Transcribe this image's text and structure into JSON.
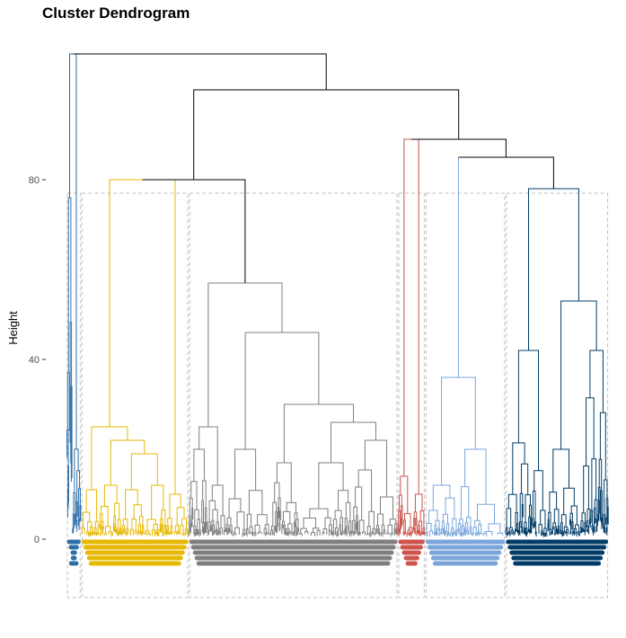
{
  "chart_data": {
    "type": "dendrogram",
    "title": "Cluster Dendrogram",
    "xlabel": "",
    "ylabel": "Height",
    "ylim": [
      -13,
      108
    ],
    "y_ticks": [
      0,
      40,
      80
    ],
    "grid": false,
    "legend": "none",
    "leaf_count_approx": 1300,
    "clusters": [
      {
        "id": "k1",
        "color": "#2E6FA8",
        "rect": {
          "x0": 0,
          "x1": 36,
          "y0": -13,
          "y1": 77
        },
        "merge_height": 108
      },
      {
        "id": "k2",
        "color": "#E7B800",
        "rect": {
          "x0": 36,
          "x1": 300,
          "y0": -13,
          "y1": 77
        },
        "merge_height": 80
      },
      {
        "id": "k3",
        "color": "#7F7F7F",
        "rect": {
          "x0": 300,
          "x1": 813,
          "y0": -13,
          "y1": 77
        },
        "merge_height": 57
      },
      {
        "id": "k4",
        "color": "#CD534C",
        "rect": {
          "x0": 813,
          "x1": 880,
          "y0": -13,
          "y1": 77
        },
        "merge_height": 14
      },
      {
        "id": "k5",
        "color": "#7AA6DC",
        "rect": {
          "x0": 880,
          "x1": 1077,
          "y0": -13,
          "y1": 77
        },
        "merge_height": 36
      },
      {
        "id": "k6",
        "color": "#003C67",
        "rect": {
          "x0": 1077,
          "x1": 1330,
          "y0": -13,
          "y1": 77
        },
        "merge_height": 78
      }
    ],
    "tree": {
      "h": 108,
      "color": "#000000",
      "children": [
        {
          "h": 108,
          "color": "#2E6FA8",
          "children": [
            {
              "h": 76,
              "color": "#2E6FA8",
              "leaves": [
                0,
                14
              ]
            },
            {
              "h": 20,
              "color": "#2E6FA8",
              "leaves": [
                14,
                36
              ]
            }
          ]
        },
        {
          "h": 100,
          "color": "#000000",
          "children": [
            {
              "h": 80,
              "color": "#000000",
              "children": [
                {
                  "h": 80,
                  "color": "#E7B800",
                  "children": [
                    {
                      "h": 25,
                      "color": "#E7B800",
                      "children": [
                        {
                          "h": 11,
                          "color": "#E7B800",
                          "leaves": [
                            36,
                            80
                          ]
                        },
                        {
                          "h": 22,
                          "color": "#E7B800",
                          "children": [
                            {
                              "h": 12,
                              "color": "#E7B800",
                              "leaves": [
                                80,
                                135
                              ]
                            },
                            {
                              "h": 19,
                              "color": "#E7B800",
                              "children": [
                                {
                                  "h": 11,
                                  "color": "#E7B800",
                                  "leaves": [
                                    135,
                                    190
                                  ]
                                },
                                {
                                  "h": 12,
                                  "color": "#E7B800",
                                  "leaves": [
                                    190,
                                    245
                                  ]
                                }
                              ]
                            }
                          ]
                        }
                      ]
                    },
                    {
                      "h": 10,
                      "color": "#E7B800",
                      "leaves": [
                        245,
                        300
                      ]
                    }
                  ]
                },
                {
                  "h": 57,
                  "color": "#7F7F7F",
                  "children": [
                    {
                      "h": 25,
                      "color": "#7F7F7F",
                      "children": [
                        {
                          "h": 20,
                          "color": "#7F7F7F",
                          "leaves": [
                            300,
                            345
                          ]
                        },
                        {
                          "h": 12,
                          "color": "#7F7F7F",
                          "leaves": [
                            345,
                            390
                          ]
                        }
                      ]
                    },
                    {
                      "h": 46,
                      "color": "#7F7F7F",
                      "children": [
                        {
                          "h": 20,
                          "color": "#7F7F7F",
                          "leaves": [
                            390,
                            500
                          ]
                        },
                        {
                          "h": 30,
                          "color": "#7F7F7F",
                          "children": [
                            {
                              "h": 17,
                              "color": "#7F7F7F",
                              "leaves": [
                                500,
                                570
                              ]
                            },
                            {
                              "h": 26,
                              "color": "#7F7F7F",
                              "children": [
                                {
                                  "h": 17,
                                  "color": "#7F7F7F",
                                  "leaves": [
                                    570,
                                    700
                                  ]
                                },
                                {
                                  "h": 22,
                                  "color": "#7F7F7F",
                                  "leaves": [
                                    700,
                                    813
                                  ]
                                }
                              ]
                            }
                          ]
                        }
                      ]
                    }
                  ]
                }
              ]
            },
            {
              "h": 89,
              "color": "#000000",
              "children": [
                {
                  "h": 89,
                  "color": "#CD534C",
                  "children": [
                    {
                      "h": 14,
                      "color": "#CD534C",
                      "leaves": [
                        813,
                        850
                      ]
                    },
                    {
                      "h": 10,
                      "color": "#CD534C",
                      "leaves": [
                        850,
                        880
                      ]
                    }
                  ]
                },
                {
                  "h": 85,
                  "color": "#000000",
                  "children": [
                    {
                      "h": 85,
                      "color": "#7AA6DC",
                      "children": [
                        {
                          "h": 36,
                          "color": "#7AA6DC",
                          "children": [
                            {
                              "h": 12,
                              "color": "#7AA6DC",
                              "leaves": [
                                880,
                                960
                              ]
                            },
                            {
                              "h": 20,
                              "color": "#7AA6DC",
                              "leaves": [
                                960,
                                1077
                              ]
                            }
                          ]
                        }
                      ]
                    },
                    {
                      "h": 78,
                      "color": "#003C67",
                      "children": [
                        {
                          "h": 42,
                          "color": "#003C67",
                          "leaves": [
                            1077,
                            1180
                          ]
                        },
                        {
                          "h": 53,
                          "color": "#003C67",
                          "children": [
                            {
                              "h": 20,
                              "color": "#003C67",
                              "leaves": [
                                1180,
                                1260
                              ]
                            },
                            {
                              "h": 42,
                              "color": "#003C67",
                              "leaves": [
                                1260,
                                1330
                              ]
                            }
                          ]
                        }
                      ]
                    }
                  ]
                }
              ]
            }
          ]
        }
      ]
    }
  }
}
